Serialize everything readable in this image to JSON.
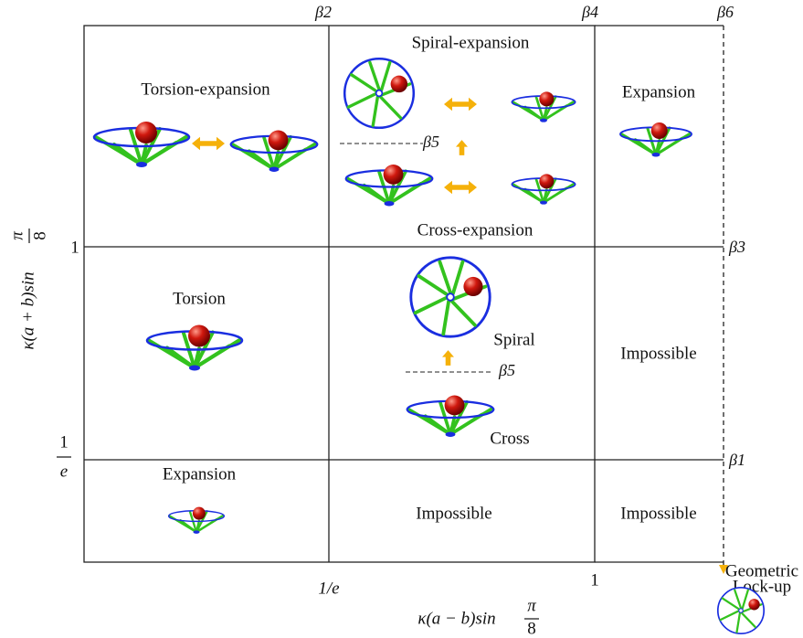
{
  "boundaries": {
    "top": [
      "β2",
      "β4",
      "β6"
    ],
    "right": [
      "β3",
      "β1"
    ],
    "inner": [
      "β5",
      "β5"
    ]
  },
  "y_axis": {
    "label": "κ(a + b)sin",
    "fraction": [
      "π",
      "8"
    ],
    "ticks": [
      {
        "label": "1"
      },
      {
        "numerator": "1",
        "denominator": "e"
      }
    ]
  },
  "x_axis": {
    "label": "κ(a − b)sin",
    "fraction": [
      "π",
      "8"
    ],
    "ticks": [
      "1/e",
      "1"
    ]
  },
  "regions": {
    "top": [
      "Torsion-expansion",
      "Spiral-expansion",
      "Cross-expansion",
      "Expansion"
    ],
    "middle": [
      "Torsion",
      "Spiral",
      "Cross",
      "Impossible"
    ],
    "bottom": [
      "Expansion",
      "Impossible",
      "Impossible"
    ]
  },
  "lock_up": [
    "Geometric",
    "Lock-up"
  ]
}
